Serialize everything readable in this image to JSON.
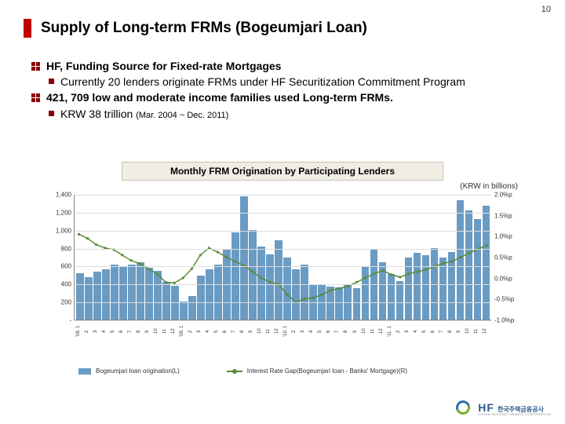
{
  "page_number": "10",
  "title": "Supply of Long-term FRMs (Bogeumjari Loan)",
  "bullets": {
    "b1": "HF, Funding Source for Fixed-rate Mortgages",
    "b1_sub": "Currently 20 lenders originate FRMs under HF Securitization Commitment Program",
    "b2": "421, 709 low and moderate income families used Long-term FRMs.",
    "b2_sub": "KRW 38 trillion",
    "b2_sub_paren": "(Mar. 2004 ~ Dec. 2011)"
  },
  "chart": {
    "type": "bar+line",
    "title": "Monthly FRM Origination by Participating Lenders",
    "unit_label": "(KRW in billions)",
    "background_color": "#ffffff",
    "grid_color": "#dddddd",
    "bar_color": "#6a9bc3",
    "line_color": "#5a8a3a",
    "y_left": {
      "min": 0,
      "max": 1400,
      "step": 200,
      "labels": [
        "-",
        "200",
        "400",
        "600",
        "800",
        "1,000",
        "1,200",
        "1,400"
      ]
    },
    "y_right": {
      "min": -1.0,
      "max": 2.0,
      "step": 0.5,
      "labels": [
        "-1.0%p",
        "-0.5%p",
        "0.0%p",
        "0.5%p",
        "1.0%p",
        "1.5%p",
        "2.0%p"
      ]
    },
    "x_labels": [
      "'08. 1",
      "2",
      "3",
      "4",
      "5",
      "6",
      "7",
      "8",
      "9",
      "10",
      "11",
      "12",
      "'09. 1",
      "2",
      "3",
      "4",
      "5",
      "6",
      "7",
      "8",
      "9",
      "10",
      "11",
      "12",
      "'10. 1",
      "2",
      "3",
      "4",
      "5",
      "6",
      "7",
      "8",
      "9",
      "10",
      "11",
      "12",
      "'11. 1",
      "2",
      "3",
      "4",
      "5",
      "6",
      "7",
      "8",
      "9",
      "10",
      "11",
      "12"
    ],
    "bars": [
      520,
      480,
      540,
      560,
      620,
      600,
      620,
      640,
      580,
      550,
      420,
      380,
      200,
      260,
      490,
      560,
      620,
      780,
      980,
      1380,
      1000,
      820,
      730,
      890,
      700,
      560,
      620,
      390,
      390,
      370,
      360,
      390,
      350,
      600,
      780,
      640,
      510,
      430,
      700,
      750,
      720,
      800,
      700,
      760,
      1340,
      1220,
      1130,
      1280
    ],
    "line_y": [
      1.05,
      0.95,
      0.8,
      0.72,
      0.68,
      0.55,
      0.42,
      0.35,
      0.22,
      0.1,
      -0.1,
      -0.12,
      0.0,
      0.22,
      0.55,
      0.72,
      0.62,
      0.5,
      0.4,
      0.3,
      0.15,
      0.0,
      -0.1,
      -0.15,
      -0.4,
      -0.58,
      -0.5,
      -0.48,
      -0.4,
      -0.3,
      -0.25,
      -0.2,
      -0.1,
      0.0,
      0.1,
      0.18,
      0.08,
      0.02,
      0.1,
      0.15,
      0.2,
      0.28,
      0.35,
      0.4,
      0.5,
      0.6,
      0.7,
      0.78
    ]
  },
  "legend": {
    "bar": "Bogeumjari loan origination(L)",
    "line": "Interest Rate Gap(Bogeumjari loan - Banks' Mortgage)(R)"
  },
  "logo": {
    "abbr": "HF",
    "kr": "한국주택금융공사",
    "en": "KOREA HOUSING FINANCE CORPORATION"
  }
}
